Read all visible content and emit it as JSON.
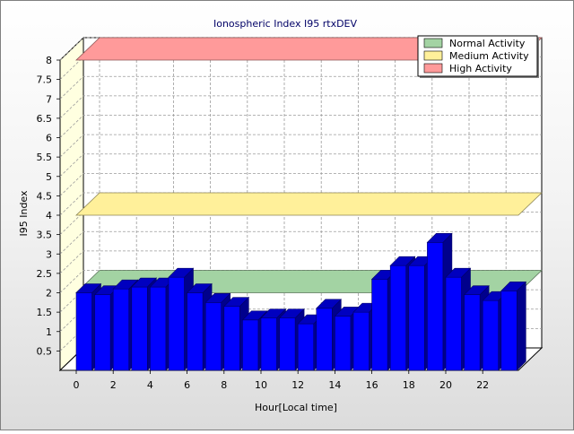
{
  "chart_data": {
    "type": "bar",
    "title": "Ionospheric Index I95 rtxDEV",
    "xlabel": "Hour[Local time]",
    "ylabel": "I95 Index",
    "ylim": [
      0,
      8
    ],
    "yticks": [
      "0.5",
      "1",
      "1.5",
      "2",
      "2.5",
      "3",
      "3.5",
      "4",
      "4.5",
      "5",
      "5.5",
      "6",
      "6.5",
      "7",
      "7.5",
      "8"
    ],
    "xticks": [
      "0",
      "2",
      "4",
      "6",
      "8",
      "10",
      "12",
      "14",
      "16",
      "18",
      "20",
      "22"
    ],
    "legend_position": "top-right",
    "grid": true,
    "x": [
      0,
      1,
      2,
      3,
      4,
      5,
      6,
      7,
      8,
      9,
      10,
      11,
      12,
      13,
      14,
      15,
      16,
      17,
      18,
      19,
      20,
      21,
      22,
      23
    ],
    "values": [
      2.0,
      1.95,
      2.1,
      2.15,
      2.15,
      2.4,
      2.0,
      1.75,
      1.65,
      1.3,
      1.35,
      1.35,
      1.2,
      1.6,
      1.4,
      1.5,
      2.35,
      2.7,
      2.7,
      3.3,
      2.4,
      1.95,
      1.8,
      2.05
    ],
    "levels": [
      {
        "name": "Normal Activity",
        "value": 2.0,
        "color": "#a3d3a3"
      },
      {
        "name": "Medium Activity",
        "value": 4.0,
        "color": "#fff09a"
      },
      {
        "name": "High Activity",
        "value": 8.0,
        "color": "#ff9a9a"
      }
    ],
    "bar_color": "#0000ff"
  }
}
